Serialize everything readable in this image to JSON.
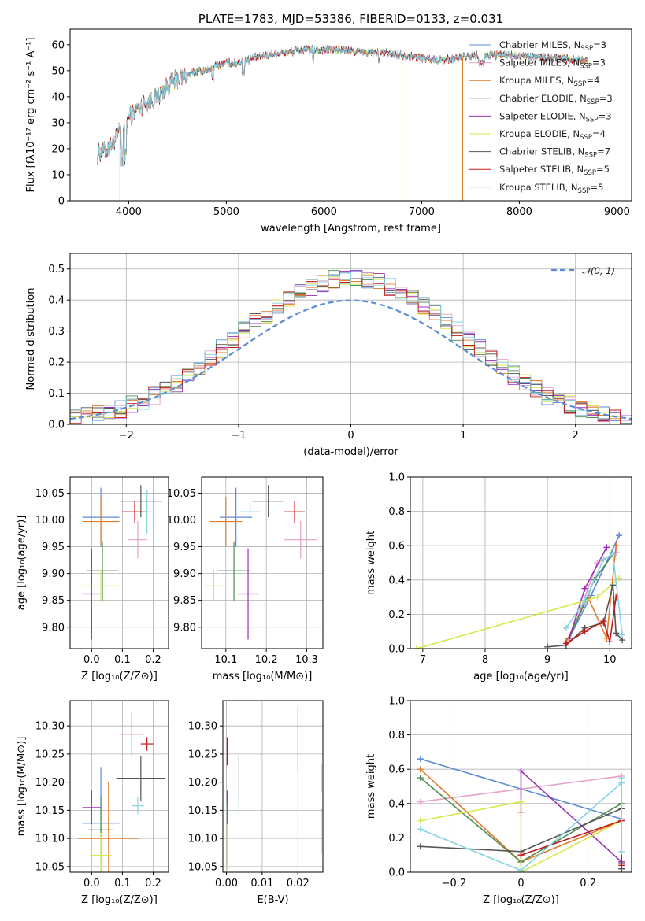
{
  "colors": {
    "Chabrier MILES": "#5b8bd6",
    "Salpeter MILES": "#e8a0c8",
    "Kroupa MILES": "#e07b2c",
    "Chabrier ELODIE": "#4f8a4f",
    "Salpeter ELODIE": "#9b30b8",
    "Kroupa ELODIE": "#d6e84a",
    "Chabrier STELIB": "#555555",
    "Salpeter STELIB": "#c01818",
    "Kroupa STELIB": "#86d4e4"
  },
  "chart_data": [
    {
      "id": "spectrum",
      "type": "line",
      "title": "PLATE=1783, MJD=53386, FIBERID=0133, z=0.031",
      "xlabel": "wavelength [Angstrom, rest frame]",
      "ylabel": "Flux [fλ10⁻¹⁷ erg cm⁻² s⁻¹ A⁻¹]",
      "xlim": [
        3400,
        9150
      ],
      "ylim": [
        0,
        66
      ],
      "xticks": [
        4000,
        5000,
        6000,
        7000,
        8000,
        9000
      ],
      "yticks": [
        0,
        10,
        20,
        30,
        40,
        50,
        60
      ],
      "legend": "upper-right",
      "series": [
        {
          "name": "Chabrier MILES, N_SSP=3",
          "label_main": "Chabrier MILES, N",
          "label_sub": "SSP",
          "label_tail": "=3",
          "model": "Chabrier MILES"
        },
        {
          "name": "Salpeter MILES, N_SSP=3",
          "label_main": "Salpeter MILES, N",
          "label_sub": "SSP",
          "label_tail": "=3",
          "model": "Salpeter MILES"
        },
        {
          "name": "Kroupa MILES, N_SSP=4",
          "label_main": "Kroupa MILES, N",
          "label_sub": "SSP",
          "label_tail": "=4",
          "model": "Kroupa MILES"
        },
        {
          "name": "Chabrier ELODIE, N_SSP=3",
          "label_main": "Chabrier ELODIE, N",
          "label_sub": "SSP",
          "label_tail": "=3",
          "model": "Chabrier ELODIE"
        },
        {
          "name": "Salpeter ELODIE, N_SSP=3",
          "label_main": "Salpeter ELODIE, N",
          "label_sub": "SSP",
          "label_tail": "=3",
          "model": "Salpeter ELODIE"
        },
        {
          "name": "Kroupa ELODIE, N_SSP=4",
          "label_main": "Kroupa ELODIE, N",
          "label_sub": "SSP",
          "label_tail": "=4",
          "model": "Kroupa ELODIE"
        },
        {
          "name": "Chabrier STELIB, N_SSP=7",
          "label_main": "Chabrier STELIB, N",
          "label_sub": "SSP",
          "label_tail": "=7",
          "model": "Chabrier STELIB"
        },
        {
          "name": "Salpeter STELIB, N_SSP=5",
          "label_main": "Salpeter STELIB, N",
          "label_sub": "SSP",
          "label_tail": "=5",
          "model": "Salpeter STELIB"
        },
        {
          "name": "Kroupa STELIB, N_SSP=5",
          "label_main": "Kroupa STELIB, N",
          "label_sub": "SSP",
          "label_tail": "=5",
          "model": "Kroupa STELIB"
        }
      ],
      "continuum": [
        [
          3680,
          18
        ],
        [
          3800,
          20
        ],
        [
          3900,
          26
        ],
        [
          4000,
          32
        ],
        [
          4100,
          36
        ],
        [
          4200,
          38
        ],
        [
          4300,
          40
        ],
        [
          4400,
          44
        ],
        [
          4500,
          47
        ],
        [
          4600,
          48
        ],
        [
          4700,
          50
        ],
        [
          4800,
          50
        ],
        [
          4900,
          52
        ],
        [
          5000,
          53
        ],
        [
          5100,
          53
        ],
        [
          5200,
          54
        ],
        [
          5400,
          56
        ],
        [
          5600,
          57
        ],
        [
          5800,
          58
        ],
        [
          6000,
          58
        ],
        [
          6200,
          58
        ],
        [
          6400,
          57
        ],
        [
          6600,
          57
        ],
        [
          6800,
          56
        ],
        [
          7000,
          55
        ],
        [
          7200,
          54
        ],
        [
          7400,
          55
        ],
        [
          7600,
          56
        ],
        [
          7800,
          56
        ],
        [
          8000,
          56
        ],
        [
          8200,
          55
        ],
        [
          8400,
          55
        ],
        [
          8700,
          54
        ]
      ],
      "drops": [
        {
          "x": 3910,
          "to": 0,
          "model": "Kroupa ELODIE"
        },
        {
          "x": 6800,
          "to": 0,
          "model": "Kroupa ELODIE"
        },
        {
          "x": 7420,
          "to": 0,
          "model": "Kroupa MILES"
        }
      ]
    },
    {
      "id": "residuals",
      "type": "line",
      "xlabel": "(data-model)/error",
      "ylabel": "Normed distribution",
      "xlim": [
        -2.5,
        2.5
      ],
      "ylim": [
        0,
        0.55
      ],
      "xticks": [
        -2,
        -1,
        0,
        1,
        2
      ],
      "yticks": [
        0.0,
        0.1,
        0.2,
        0.3,
        0.4,
        0.5
      ],
      "grid": true,
      "legend": "upper-right",
      "reference": {
        "name": "N(0,1)",
        "label_main": "𝒩(0, 1)",
        "mean": 0,
        "sigma": 1,
        "color": "#5b8bd6"
      },
      "bin_width": 0.1
    },
    {
      "id": "age-vs-Z",
      "type": "scatter",
      "xlabel": "Z [log₁₀(Z/Z⊙)]",
      "ylabel": "age  [log₁₀(age/yr)]",
      "xlim": [
        -0.07,
        0.25
      ],
      "ylim": [
        9.76,
        10.08
      ],
      "xticks": [
        0.0,
        0.1,
        0.2
      ],
      "yticks": [
        9.8,
        9.85,
        9.9,
        9.95,
        10.0,
        10.05
      ],
      "grid": true,
      "points": [
        {
          "model": "Chabrier MILES",
          "x": 0.03,
          "xerr": 0.06,
          "y": 10.005,
          "yerr": 0.055
        },
        {
          "model": "Salpeter MILES",
          "x": 0.15,
          "xerr": 0.03,
          "y": 9.963,
          "yerr": 0.035
        },
        {
          "model": "Kroupa MILES",
          "x": 0.03,
          "xerr": 0.06,
          "y": 9.997,
          "yerr": 0.045
        },
        {
          "model": "Chabrier ELODIE",
          "x": 0.035,
          "xerr": 0.05,
          "y": 9.905,
          "yerr": 0.055
        },
        {
          "model": "Salpeter ELODIE",
          "x": 0.0,
          "xerr": 0.03,
          "y": 9.862,
          "yerr": 0.085
        },
        {
          "model": "Kroupa ELODIE",
          "x": 0.03,
          "xerr": 0.06,
          "y": 9.877,
          "yerr": 0.03
        },
        {
          "model": "Chabrier STELIB",
          "x": 0.16,
          "xerr": 0.07,
          "y": 10.035,
          "yerr": 0.03
        },
        {
          "model": "Salpeter STELIB",
          "x": 0.14,
          "xerr": 0.04,
          "y": 10.015,
          "yerr": 0.02
        },
        {
          "model": "Kroupa STELIB",
          "x": 0.18,
          "xerr": 0.015,
          "y": 10.015,
          "yerr": 0.04
        }
      ]
    },
    {
      "id": "age-vs-mass",
      "type": "scatter",
      "xlabel": "mass [log₁₀(M/M⊙)]",
      "xlim": [
        10.04,
        10.34
      ],
      "ylim": [
        9.76,
        10.08
      ],
      "xticks": [
        10.1,
        10.2,
        10.3
      ],
      "yticks": [
        9.8,
        9.85,
        9.9,
        9.95,
        10.0,
        10.05
      ],
      "grid": true,
      "points": [
        {
          "model": "Chabrier MILES",
          "x": 10.125,
          "xerr": 0.04,
          "y": 10.005,
          "yerr": 0.055
        },
        {
          "model": "Salpeter MILES",
          "x": 10.285,
          "xerr": 0.04,
          "y": 9.963,
          "yerr": 0.035
        },
        {
          "model": "Kroupa MILES",
          "x": 10.1,
          "xerr": 0.04,
          "y": 9.997,
          "yerr": 0.045
        },
        {
          "model": "Chabrier ELODIE",
          "x": 10.12,
          "xerr": 0.04,
          "y": 9.905,
          "yerr": 0.055
        },
        {
          "model": "Salpeter ELODIE",
          "x": 10.155,
          "xerr": 0.025,
          "y": 9.862,
          "yerr": 0.085
        },
        {
          "model": "Kroupa ELODIE",
          "x": 10.07,
          "xerr": 0.025,
          "y": 9.877,
          "yerr": 0.03
        },
        {
          "model": "Chabrier STELIB",
          "x": 10.205,
          "xerr": 0.04,
          "y": 10.035,
          "yerr": 0.03
        },
        {
          "model": "Salpeter STELIB",
          "x": 10.27,
          "xerr": 0.025,
          "y": 10.015,
          "yerr": 0.02
        },
        {
          "model": "Kroupa STELIB",
          "x": 10.16,
          "xerr": 0.025,
          "y": 10.015,
          "yerr": 0.015
        }
      ]
    },
    {
      "id": "mass-weight-vs-age",
      "type": "line",
      "xlabel": "age  [log₁₀(age/yr)]",
      "ylabel": "mass weight",
      "xlim": [
        6.8,
        10.35
      ],
      "ylim": [
        0,
        1.0
      ],
      "xticks": [
        7,
        8,
        9,
        10
      ],
      "yticks": [
        0.0,
        0.2,
        0.4,
        0.6,
        0.8,
        1.0
      ],
      "grid": true,
      "series": [
        {
          "model": "Chabrier MILES",
          "x": [
            9.35,
            9.7,
            10.15
          ],
          "y": [
            0.06,
            0.31,
            0.66
          ]
        },
        {
          "model": "Salpeter MILES",
          "x": [
            9.35,
            9.8,
            10.1
          ],
          "y": [
            0.05,
            0.5,
            0.56
          ]
        },
        {
          "model": "Kroupa MILES",
          "x": [
            9.3,
            9.65,
            9.95,
            10.1
          ],
          "y": [
            0.04,
            0.3,
            0.06,
            0.6
          ]
        },
        {
          "model": "Chabrier ELODIE",
          "x": [
            9.35,
            9.75,
            10.05
          ],
          "y": [
            0.06,
            0.4,
            0.55
          ]
        },
        {
          "model": "Salpeter ELODIE",
          "x": [
            9.35,
            9.6,
            9.95
          ],
          "y": [
            0.06,
            0.35,
            0.59
          ]
        },
        {
          "model": "Kroupa ELODIE",
          "x": [
            6.9,
            9.8,
            10.15
          ],
          "y": [
            0.0,
            0.3,
            0.41
          ]
        },
        {
          "model": "Chabrier STELIB",
          "x": [
            9.0,
            9.3,
            9.6,
            9.9,
            10.05,
            10.1,
            10.2
          ],
          "y": [
            0.01,
            0.02,
            0.12,
            0.15,
            0.37,
            0.09,
            0.05
          ]
        },
        {
          "model": "Salpeter STELIB",
          "x": [
            9.3,
            9.6,
            9.9,
            10.0,
            10.1
          ],
          "y": [
            0.03,
            0.1,
            0.16,
            0.04,
            0.3
          ]
        },
        {
          "model": "Kroupa STELIB",
          "x": [
            9.3,
            9.6,
            9.9,
            10.05,
            10.2
          ],
          "y": [
            0.12,
            0.28,
            0.52,
            0.55,
            0.08
          ]
        }
      ]
    },
    {
      "id": "mass-vs-Z",
      "type": "scatter",
      "xlabel": "Z [log₁₀(Z/Z⊙)]",
      "ylabel": "mass [log₁₀(M/M⊙)]",
      "xlim": [
        -0.07,
        0.25
      ],
      "ylim": [
        10.04,
        10.345
      ],
      "xticks": [
        0.0,
        0.1,
        0.2
      ],
      "yticks": [
        10.05,
        10.1,
        10.15,
        10.2,
        10.25,
        10.3
      ],
      "grid": true,
      "points": [
        {
          "model": "Chabrier MILES",
          "x": 0.03,
          "xerr": 0.06,
          "y": 10.127,
          "yerr": 0.1
        },
        {
          "model": "Salpeter MILES",
          "x": 0.13,
          "xerr": 0.04,
          "y": 10.285,
          "yerr": 0.04
        },
        {
          "model": "Kroupa MILES",
          "x": 0.055,
          "xerr": 0.1,
          "y": 10.1,
          "yerr": 0.1
        },
        {
          "model": "Chabrier ELODIE",
          "x": 0.03,
          "xerr": 0.04,
          "y": 10.115,
          "yerr": 0.06
        },
        {
          "model": "Salpeter ELODIE",
          "x": 0.0,
          "xerr": 0.03,
          "y": 10.155,
          "yerr": 0.03
        },
        {
          "model": "Kroupa ELODIE",
          "x": 0.03,
          "xerr": 0.035,
          "y": 10.07,
          "yerr": 0.04
        },
        {
          "model": "Chabrier STELIB",
          "x": 0.16,
          "xerr": 0.08,
          "y": 10.207,
          "yerr": 0.04
        },
        {
          "model": "Salpeter STELIB",
          "x": 0.18,
          "xerr": 0.02,
          "y": 10.268,
          "yerr": 0.012
        },
        {
          "model": "Kroupa STELIB",
          "x": 0.15,
          "xerr": 0.02,
          "y": 10.158,
          "yerr": 0.015
        }
      ]
    },
    {
      "id": "mass-vs-EBV",
      "type": "scatter",
      "xlabel": "E(B-V)",
      "xlim": [
        -0.001,
        0.027
      ],
      "ylim": [
        10.04,
        10.345
      ],
      "xticks": [
        0.0,
        0.01,
        0.02
      ],
      "yticks": [
        10.05,
        10.1,
        10.15,
        10.2,
        10.25,
        10.3
      ],
      "grid": true,
      "points": [
        {
          "model": "Chabrier MILES",
          "x": 0.0265,
          "xerr": 0.0,
          "y": 10.207,
          "yerr": 0.025
        },
        {
          "model": "Salpeter MILES",
          "x": 0.02,
          "xerr": 0.0,
          "y": 10.275,
          "yerr": 0.055
        },
        {
          "model": "Kroupa MILES",
          "x": 0.0265,
          "xerr": 0.0,
          "y": 10.115,
          "yerr": 0.04
        },
        {
          "model": "Chabrier ELODIE",
          "x": 0.0002,
          "xerr": 0.0,
          "y": 10.115,
          "yerr": 0.06
        },
        {
          "model": "Salpeter ELODIE",
          "x": 0.0002,
          "xerr": 0.0,
          "y": 10.175,
          "yerr": 0.01
        },
        {
          "model": "Kroupa ELODIE",
          "x": 0.0002,
          "xerr": 0.0,
          "y": 10.085,
          "yerr": 0.04
        },
        {
          "model": "Chabrier STELIB",
          "x": 0.0035,
          "xerr": 0.0,
          "y": 10.207,
          "yerr": 0.04
        },
        {
          "model": "Salpeter STELIB",
          "x": 0.0002,
          "xerr": 0.0,
          "y": 10.255,
          "yerr": 0.025
        },
        {
          "model": "Kroupa STELIB",
          "x": 0.0035,
          "xerr": 0.0,
          "y": 10.158,
          "yerr": 0.015
        }
      ]
    },
    {
      "id": "mass-weight-vs-Z",
      "type": "line",
      "xlabel": "Z [log₁₀(Z/Z⊙)]",
      "ylabel": "mass weight",
      "xlim": [
        -0.33,
        0.33
      ],
      "ylim": [
        0,
        1.0
      ],
      "xticks": [
        -0.2,
        0.0,
        0.2
      ],
      "yticks": [
        0.0,
        0.2,
        0.4,
        0.6,
        0.8,
        1.0
      ],
      "grid": true,
      "series": [
        {
          "model": "Chabrier MILES",
          "x": [
            -0.3,
            0.3
          ],
          "y": [
            0.66,
            0.31
          ]
        },
        {
          "model": "Salpeter MILES",
          "x": [
            -0.3,
            0.3
          ],
          "y": [
            0.41,
            0.56
          ]
        },
        {
          "model": "Kroupa MILES",
          "x": [
            -0.3,
            0.0,
            0.3,
            0.3
          ],
          "y": [
            0.6,
            0.06,
            0.3,
            0.06
          ]
        },
        {
          "model": "Chabrier ELODIE",
          "x": [
            -0.3,
            0.0,
            0.3
          ],
          "y": [
            0.55,
            0.06,
            0.4
          ]
        },
        {
          "model": "Salpeter ELODIE",
          "x": [
            0.0,
            0.0,
            0.3,
            0.3
          ],
          "y": [
            0.35,
            0.59,
            0.06,
            0.02
          ]
        },
        {
          "model": "Kroupa ELODIE",
          "x": [
            -0.3,
            0.0,
            0.0,
            0.3
          ],
          "y": [
            0.3,
            0.41,
            0.0,
            0.3
          ]
        },
        {
          "model": "Chabrier STELIB",
          "x": [
            -0.3,
            0.0,
            0.3,
            0.3,
            0.3
          ],
          "y": [
            0.15,
            0.12,
            0.37,
            0.05,
            0.02
          ]
        },
        {
          "model": "Salpeter STELIB",
          "x": [
            0.0,
            0.3,
            0.3
          ],
          "y": [
            0.1,
            0.3,
            0.04
          ]
        },
        {
          "model": "Kroupa STELIB",
          "x": [
            -0.3,
            0.0,
            0.3,
            0.3,
            0.3
          ],
          "y": [
            0.25,
            0.01,
            0.52,
            0.12,
            0.55
          ]
        }
      ]
    }
  ]
}
